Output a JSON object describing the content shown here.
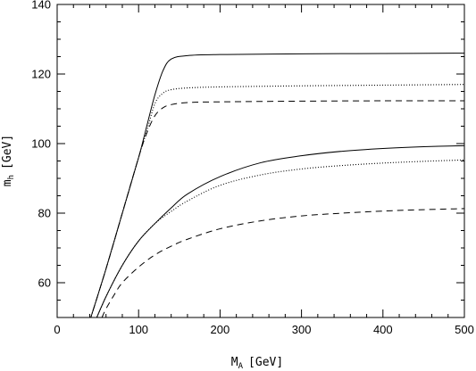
{
  "chart_data": {
    "type": "line",
    "title": "",
    "xlabel": "M",
    "xlabel_sub": "A",
    "xlabel_unit": "[GeV]",
    "ylabel": "m",
    "ylabel_sub": "h",
    "ylabel_unit": "[GeV]",
    "xlim": [
      0,
      500
    ],
    "ylim": [
      50,
      140
    ],
    "x_ticks": [
      0,
      100,
      200,
      300,
      400,
      500
    ],
    "y_ticks": [
      60,
      80,
      100,
      120,
      140
    ],
    "grid": false,
    "legend": "none",
    "series": [
      {
        "style": "solid",
        "x": [
          40,
          60,
          80,
          100,
          110,
          120,
          130,
          140,
          160,
          200,
          300,
          400,
          500
        ],
        "y": [
          49,
          64,
          80,
          96,
          105,
          114,
          121,
          124.3,
          125.3,
          125.6,
          125.8,
          125.9,
          126
        ]
      },
      {
        "style": "dotted",
        "x": [
          40,
          60,
          80,
          100,
          110,
          120,
          130,
          140,
          160,
          200,
          300,
          400,
          500
        ],
        "y": [
          49,
          64,
          80,
          96,
          103.5,
          111.5,
          114.5,
          115.5,
          116,
          116.3,
          116.6,
          116.8,
          117
        ]
      },
      {
        "style": "dashed",
        "x": [
          40,
          60,
          80,
          100,
          110,
          120,
          130,
          140,
          160,
          200,
          300,
          400,
          500
        ],
        "y": [
          49,
          64,
          80,
          96,
          103,
          108,
          110.3,
          111.2,
          111.8,
          112,
          112.2,
          112.3,
          112.3
        ]
      },
      {
        "style": "solid",
        "x": [
          45,
          60,
          80,
          100,
          120,
          140,
          160,
          200,
          250,
          300,
          350,
          400,
          450,
          500
        ],
        "y": [
          48,
          56,
          65,
          72,
          77,
          81.5,
          85.5,
          90.5,
          94.5,
          96.5,
          97.8,
          98.6,
          99.1,
          99.4
        ]
      },
      {
        "style": "dotted",
        "x": [
          45,
          60,
          80,
          100,
          120,
          140,
          160,
          200,
          250,
          300,
          350,
          400,
          450,
          500
        ],
        "y": [
          48,
          56,
          65,
          72,
          77,
          80.5,
          83.5,
          88,
          91,
          92.7,
          93.7,
          94.4,
          94.9,
          95.3
        ]
      },
      {
        "style": "dashed",
        "x": [
          55,
          60,
          70,
          80,
          100,
          120,
          140,
          160,
          200,
          250,
          300,
          350,
          400,
          450,
          500
        ],
        "y": [
          50,
          52.5,
          56.5,
          60,
          64.5,
          68,
          70.5,
          72.5,
          75.5,
          77.8,
          79.2,
          80,
          80.6,
          81,
          81.3
        ]
      }
    ]
  }
}
